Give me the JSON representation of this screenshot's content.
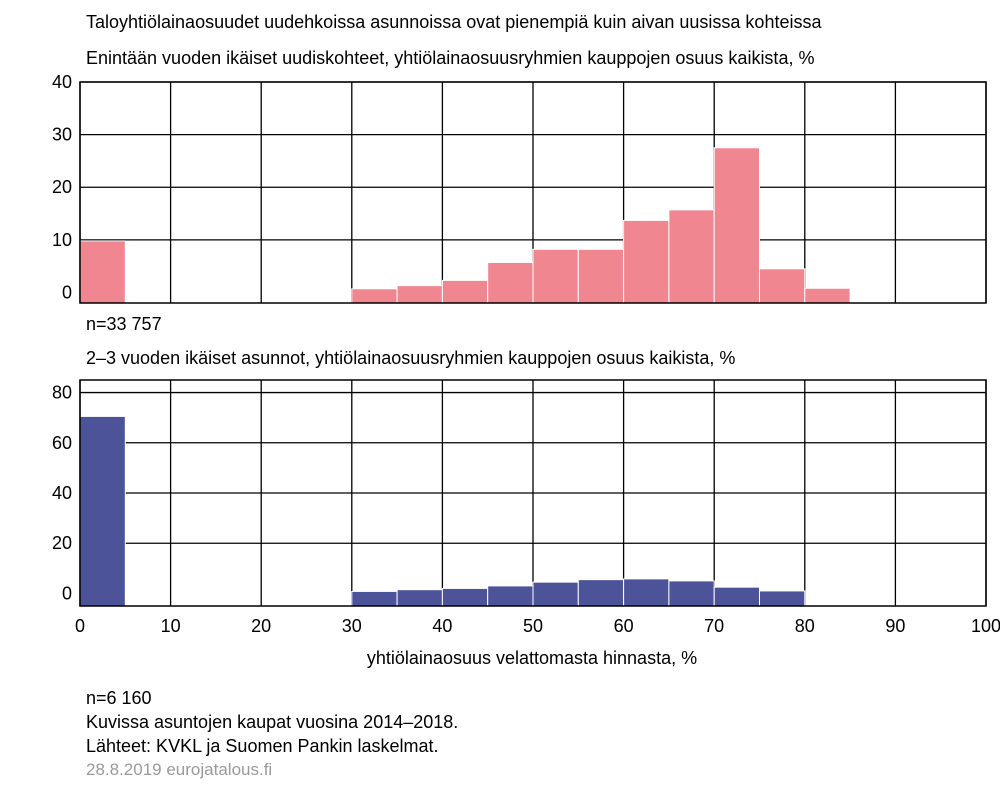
{
  "header": {
    "title": "Taloyhtiölainaosuudet uudehkoissa asunnoissa ovat pienempiä kuin aivan uusissa kohteissa"
  },
  "footer": {
    "n2": "n=6 160",
    "note": "Kuvissa asuntojen kaupat vuosina 2014–2018.",
    "source": "Lähteet: KVKL ja Suomen Pankin laskelmat.",
    "date": "28.8.2019 eurojatalous.fi"
  },
  "colors": {
    "top_bars": "#f0868f",
    "bottom_bars": "#4d5399",
    "grid": "#000000"
  },
  "chart_data": [
    {
      "type": "bar",
      "subtitle": "Enintään vuoden ikäiset uudiskohteet, yhtiölainaosuusryhmien kauppojen osuus kaikista, %",
      "note": "n=33 757",
      "bin_edges": [
        0,
        5,
        10,
        15,
        20,
        25,
        30,
        35,
        40,
        45,
        50,
        55,
        60,
        65,
        70,
        75,
        80,
        85,
        90,
        95,
        100
      ],
      "values": [
        9.8,
        0,
        0,
        0,
        0,
        0,
        0.7,
        1.3,
        2.3,
        5.7,
        8.2,
        8.2,
        13.7,
        15.7,
        27.5,
        4.5,
        0.8,
        0,
        0,
        0
      ],
      "ylim": [
        -2,
        40
      ],
      "yticks": [
        0,
        10,
        20,
        30,
        40
      ],
      "xgrid": [
        0,
        10,
        20,
        30,
        40,
        50,
        60,
        70,
        80,
        90,
        100
      ],
      "bar_color": "#f0868f"
    },
    {
      "type": "bar",
      "subtitle": "2–3 vuoden ikäiset asunnot, yhtiölainaosuusryhmien kauppojen osuus kaikista, %",
      "note": "n=6 160",
      "bin_edges": [
        0,
        5,
        10,
        15,
        20,
        25,
        30,
        35,
        40,
        45,
        50,
        55,
        60,
        65,
        70,
        75,
        80,
        85,
        90,
        95,
        100
      ],
      "values": [
        70.5,
        0,
        0,
        0,
        0,
        0,
        0.8,
        1.5,
        2.0,
        3.0,
        4.5,
        5.5,
        5.8,
        5.0,
        2.5,
        1.0,
        0,
        0,
        0,
        0
      ],
      "ylim": [
        -5,
        85
      ],
      "yticks": [
        0,
        20,
        40,
        60,
        80
      ],
      "xgrid": [
        0,
        10,
        20,
        30,
        40,
        50,
        60,
        70,
        80,
        90,
        100
      ],
      "xticks": [
        0,
        10,
        20,
        30,
        40,
        50,
        60,
        70,
        80,
        90,
        100
      ],
      "xlabel": "yhtiölainaosuus velattomasta hinnasta, %",
      "bar_color": "#4d5399"
    }
  ]
}
